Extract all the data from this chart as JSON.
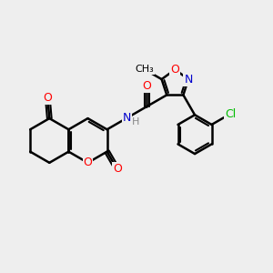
{
  "bg_color": "#eeeeee",
  "bond_color": "#000000",
  "bond_width": 1.8,
  "atom_colors": {
    "O": "#ff0000",
    "N": "#0000cc",
    "Cl": "#00bb00",
    "C": "#000000",
    "H": "#888888"
  },
  "fig_size": [
    3.0,
    3.0
  ],
  "dpi": 100
}
